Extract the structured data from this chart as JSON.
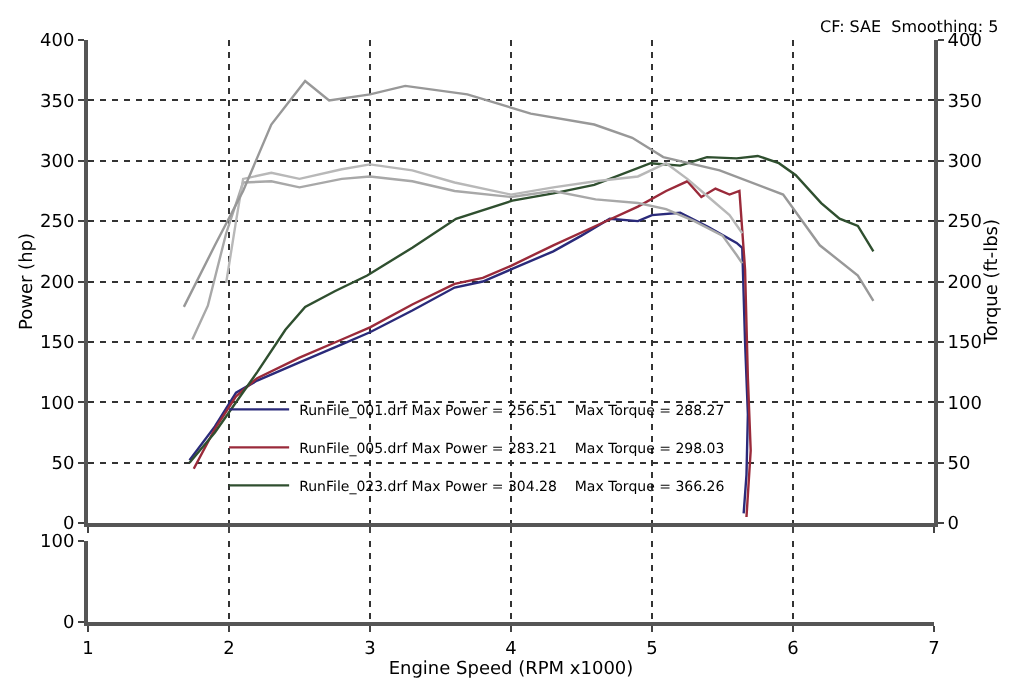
{
  "chart_data": [
    {
      "type": "line",
      "ylabel": "Power (hp)",
      "y2label": "Torque (ft-lbs)",
      "annotations": [
        "CF: SAE  Smoothing: 5"
      ],
      "xlim": [
        1,
        7
      ],
      "xticks": [
        1,
        2,
        3,
        4,
        5,
        6,
        7
      ],
      "ylim": [
        0,
        400
      ],
      "yticks": [
        0,
        50,
        100,
        150,
        200,
        250,
        300,
        350,
        400
      ],
      "y2lim": [
        0,
        400
      ],
      "y2ticks": [
        0,
        50,
        100,
        150,
        200,
        250,
        300,
        350,
        400
      ],
      "tick_labels": "y",
      "grid": true,
      "line_style": "solid",
      "marker": "none",
      "legend": "bottom left",
      "series": [
        {
          "name": "RunFile_001.drf Max Power = 256.51    Max Torque = 288.27",
          "color": "#2a2a7a",
          "x": [
            1.72,
            1.9,
            2.05,
            2.2,
            2.5,
            2.8,
            3.0,
            3.3,
            3.6,
            3.8,
            4.0,
            4.3,
            4.5,
            4.7,
            4.9,
            5.0,
            5.2,
            5.4,
            5.6,
            5.64,
            5.66,
            5.68,
            5.67,
            5.65
          ],
          "values": [
            52,
            80,
            108,
            118,
            133,
            148,
            158,
            176,
            195,
            200,
            210,
            225,
            238,
            252,
            250,
            255,
            257,
            245,
            232,
            228,
            150,
            90,
            40,
            8
          ]
        },
        {
          "name": "RunFile_005.drf Max Power = 283.21    Max Torque = 298.03",
          "color": "#9a2a3a",
          "x": [
            1.75,
            1.9,
            2.05,
            2.2,
            2.5,
            2.8,
            3.0,
            3.3,
            3.6,
            3.8,
            4.0,
            4.3,
            4.6,
            4.9,
            5.1,
            5.25,
            5.35,
            5.45,
            5.55,
            5.62,
            5.66,
            5.68,
            5.7,
            5.67
          ],
          "values": [
            45,
            78,
            105,
            120,
            137,
            152,
            162,
            181,
            198,
            203,
            213,
            230,
            246,
            262,
            275,
            283,
            270,
            277,
            272,
            275,
            210,
            120,
            60,
            5
          ]
        },
        {
          "name": "RunFile_023.drf Max Power = 304.28    Max Torque = 366.26",
          "color": "#2f4f2f",
          "x": [
            1.72,
            1.9,
            2.05,
            2.2,
            2.4,
            2.54,
            2.75,
            2.98,
            3.3,
            3.61,
            4.01,
            4.3,
            4.59,
            4.99,
            5.2,
            5.39,
            5.6,
            5.75,
            5.9,
            6.02,
            6.2,
            6.33,
            6.46,
            6.57
          ],
          "values": [
            50,
            75,
            100,
            125,
            160,
            179,
            192,
            205,
            228,
            252,
            267,
            273,
            280,
            298,
            296,
            303,
            302,
            304,
            298,
            288,
            265,
            252,
            246,
            225
          ]
        },
        {
          "axis": "y2",
          "color": "#a8a8a8",
          "x": [
            1.74,
            1.85,
            1.98,
            2.1,
            2.3,
            2.5,
            2.8,
            3.0,
            3.3,
            3.6,
            4.0,
            4.3,
            4.6,
            4.9,
            5.1,
            5.3,
            5.5,
            5.6,
            5.64
          ],
          "values": [
            152,
            180,
            240,
            282,
            283,
            278,
            285,
            287,
            283,
            275,
            270,
            275,
            268,
            265,
            260,
            250,
            238,
            222,
            215
          ]
        },
        {
          "axis": "y2",
          "color": "#b8b8b8",
          "x": [
            1.98,
            2.05,
            2.1,
            2.3,
            2.5,
            2.8,
            3.0,
            3.3,
            3.6,
            4.0,
            4.3,
            4.6,
            4.9,
            5.1,
            5.25,
            5.4,
            5.55,
            5.64
          ],
          "values": [
            199,
            250,
            285,
            290,
            285,
            293,
            297,
            292,
            282,
            272,
            278,
            283,
            287,
            298,
            285,
            270,
            255,
            240
          ]
        },
        {
          "axis": "y2",
          "color": "#989898",
          "x": [
            1.68,
            1.9,
            2.1,
            2.3,
            2.54,
            2.71,
            3.0,
            3.25,
            3.69,
            4.14,
            4.59,
            4.86,
            5.08,
            5.48,
            5.93,
            6.19,
            6.46,
            6.57
          ],
          "values": [
            179,
            230,
            275,
            330,
            366,
            350,
            355,
            362,
            355,
            339,
            330,
            319,
            303,
            292,
            272,
            230,
            205,
            184
          ]
        }
      ]
    },
    {
      "type": "line",
      "xlabel": "Engine Speed (RPM x1000)",
      "xlim": [
        1,
        7
      ],
      "xticks": [
        1,
        2,
        3,
        4,
        5,
        6,
        7
      ],
      "ylim": [
        0,
        100
      ],
      "yticks": [
        0,
        100
      ],
      "grid": "x"
    }
  ]
}
